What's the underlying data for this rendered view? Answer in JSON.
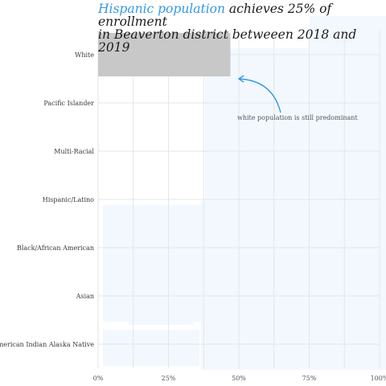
{
  "title": {
    "highlight": "Hispanic population",
    "rest_line1": " achieves 25% of enrollment",
    "line2": "in Beaverton district betweeen 2018 and 2019"
  },
  "colors": {
    "highlight": "#3399e6",
    "bar": "#c8c8c8",
    "map_tint": "#f2f8fe",
    "grid": "#e6e6e6"
  },
  "chart_data": {
    "type": "bar",
    "orientation": "horizontal",
    "categories": [
      "White",
      "Pacific Islander",
      "Multi-Racial",
      "Hispanic/Latino",
      "Black/African American",
      "Asian",
      "American Indian Alaska Native"
    ],
    "values": [
      47,
      null,
      null,
      null,
      null,
      null,
      null
    ],
    "xlim": [
      0,
      100
    ],
    "x_ticks": [
      "0%",
      "25%",
      "50%",
      "75%",
      "100%"
    ],
    "grid": true,
    "annotation": {
      "text": "white population is still predominant",
      "target_category": "White",
      "target_value": 50
    }
  }
}
